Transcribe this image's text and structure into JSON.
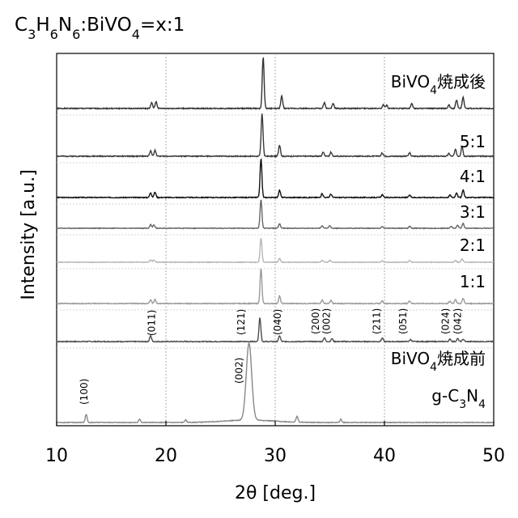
{
  "chart_data": {
    "type": "line",
    "title_parts": [
      {
        "t": "C"
      },
      {
        "t": "3",
        "sub": true
      },
      {
        "t": "H"
      },
      {
        "t": "6",
        "sub": true
      },
      {
        "t": "N"
      },
      {
        "t": "6",
        "sub": true
      },
      {
        "t": ":BiVO"
      },
      {
        "t": "4",
        "sub": true
      },
      {
        "t": "=x:1"
      }
    ],
    "xlabel": "2θ [deg.]",
    "ylabel": "Intensity [a.u.]",
    "xlim": [
      10,
      50
    ],
    "xticks": [
      10,
      20,
      30,
      40,
      50
    ],
    "grid": "vertical dotted at 20, 30, 40",
    "y_axis_ticks": "none",
    "series": [
      {
        "name_parts": [
          {
            "t": "BiVO"
          },
          {
            "t": "4",
            "sub": true
          },
          {
            "t": "焼成後"
          }
        ],
        "color": "#333333",
        "peaks": [
          [
            18.7,
            0.1
          ],
          [
            19.1,
            0.12
          ],
          [
            28.9,
            0.9
          ],
          [
            30.6,
            0.22
          ],
          [
            34.5,
            0.1
          ],
          [
            35.3,
            0.09
          ],
          [
            39.9,
            0.07
          ],
          [
            40.2,
            0.06
          ],
          [
            42.5,
            0.09
          ],
          [
            45.9,
            0.06
          ],
          [
            46.6,
            0.15
          ],
          [
            47.2,
            0.2
          ]
        ]
      },
      {
        "name_parts": [
          {
            "t": "5:1"
          }
        ],
        "color": "#3a3a3a",
        "peaks": [
          [
            18.6,
            0.1
          ],
          [
            19.0,
            0.11
          ],
          [
            28.8,
            0.78
          ],
          [
            30.4,
            0.2
          ],
          [
            34.4,
            0.08
          ],
          [
            35.1,
            0.07
          ],
          [
            39.8,
            0.06
          ],
          [
            42.3,
            0.06
          ],
          [
            45.9,
            0.05
          ],
          [
            46.5,
            0.12
          ],
          [
            47.1,
            0.18
          ]
        ]
      },
      {
        "name_parts": [
          {
            "t": "4:1"
          }
        ],
        "color": "#111111",
        "peaks": [
          [
            18.6,
            0.1
          ],
          [
            19.0,
            0.11
          ],
          [
            28.7,
            0.8
          ],
          [
            30.4,
            0.15
          ],
          [
            34.3,
            0.08
          ],
          [
            35.1,
            0.07
          ],
          [
            39.8,
            0.06
          ],
          [
            42.3,
            0.05
          ],
          [
            46.0,
            0.05
          ],
          [
            46.6,
            0.1
          ],
          [
            47.2,
            0.15
          ]
        ]
      },
      {
        "name_parts": [
          {
            "t": "3:1"
          }
        ],
        "color": "#666666",
        "peaks": [
          [
            18.6,
            0.1
          ],
          [
            18.9,
            0.09
          ],
          [
            28.7,
            0.78
          ],
          [
            30.4,
            0.12
          ],
          [
            34.3,
            0.07
          ],
          [
            35.0,
            0.07
          ],
          [
            39.8,
            0.05
          ],
          [
            42.3,
            0.05
          ],
          [
            46.1,
            0.05
          ],
          [
            46.7,
            0.09
          ],
          [
            47.2,
            0.13
          ]
        ]
      },
      {
        "name_parts": [
          {
            "t": "2:1"
          }
        ],
        "color": "#b5b5b5",
        "peaks": [
          [
            18.6,
            0.07
          ],
          [
            18.9,
            0.07
          ],
          [
            28.7,
            0.75
          ],
          [
            30.4,
            0.12
          ],
          [
            34.3,
            0.06
          ],
          [
            35.0,
            0.06
          ],
          [
            39.8,
            0.05
          ],
          [
            42.3,
            0.05
          ],
          [
            46.5,
            0.06
          ],
          [
            47.1,
            0.1
          ]
        ]
      },
      {
        "name_parts": [
          {
            "t": "1:1"
          }
        ],
        "color": "#9a9a9a",
        "peaks": [
          [
            18.6,
            0.09
          ],
          [
            19.0,
            0.09
          ],
          [
            28.7,
            0.8
          ],
          [
            30.4,
            0.17
          ],
          [
            34.3,
            0.08
          ],
          [
            35.1,
            0.07
          ],
          [
            39.8,
            0.06
          ],
          [
            42.3,
            0.06
          ],
          [
            46.0,
            0.05
          ],
          [
            46.5,
            0.1
          ],
          [
            47.2,
            0.12
          ]
        ]
      },
      {
        "name_parts": [
          {
            "t": "BiVO"
          },
          {
            "t": "4",
            "sub": true
          },
          {
            "t": "焼成前"
          }
        ],
        "color": "#4d4d4d",
        "peaks": [
          [
            18.6,
            0.12
          ],
          [
            28.6,
            0.5
          ],
          [
            30.4,
            0.12
          ],
          [
            34.5,
            0.08
          ],
          [
            35.2,
            0.06
          ],
          [
            39.8,
            0.07
          ],
          [
            42.4,
            0.04
          ],
          [
            46.0,
            0.05
          ],
          [
            46.7,
            0.06
          ],
          [
            47.2,
            0.05
          ]
        ]
      },
      {
        "name_parts": [
          {
            "t": "g-C"
          },
          {
            "t": "3",
            "sub": true
          },
          {
            "t": "N"
          },
          {
            "t": "4",
            "sub": true
          }
        ],
        "color": "#888888",
        "peaks": [
          [
            12.7,
            0.2
          ],
          [
            17.6,
            0.08
          ],
          [
            21.8,
            0.06
          ],
          [
            27.6,
            1.9
          ],
          [
            32.0,
            0.15
          ],
          [
            36.0,
            0.08
          ]
        ]
      }
    ],
    "peak_labels": [
      {
        "text": "(100)",
        "x": 12.8
      },
      {
        "text": "(011)",
        "x": 19.0
      },
      {
        "text": "(121)",
        "x": 27.2
      },
      {
        "text": "(002)",
        "x": 27.0
      },
      {
        "text": "(040)",
        "x": 30.5
      },
      {
        "text": "(200)",
        "x": 34.0
      },
      {
        "text": "(002)",
        "x": 35.0
      },
      {
        "text": "(211)",
        "x": 39.6
      },
      {
        "text": "(051)",
        "x": 42.0
      },
      {
        "text": "(024)",
        "x": 45.9
      },
      {
        "text": "(042)",
        "x": 47.0
      }
    ]
  }
}
